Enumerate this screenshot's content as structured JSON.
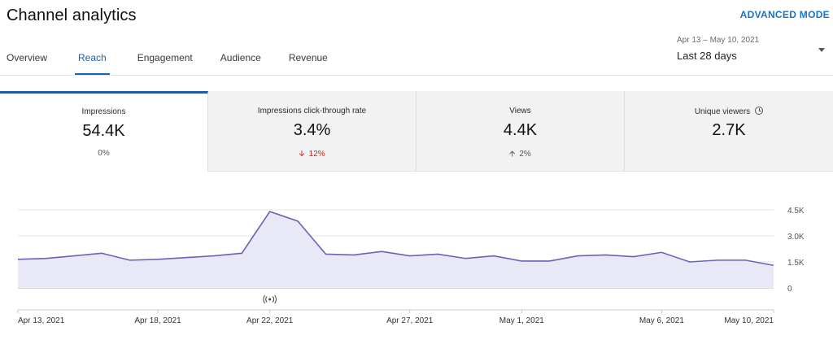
{
  "header": {
    "title": "Channel analytics",
    "advanced_mode_label": "ADVANCED MODE"
  },
  "tabs": [
    {
      "label": "Overview",
      "active": false
    },
    {
      "label": "Reach",
      "active": true
    },
    {
      "label": "Engagement",
      "active": false
    },
    {
      "label": "Audience",
      "active": false
    },
    {
      "label": "Revenue",
      "active": false
    }
  ],
  "date_range": {
    "sub_label": "Apr 13 – May 10, 2021",
    "selected": "Last 28 days"
  },
  "metrics": [
    {
      "label": "Impressions",
      "value": "54.4K",
      "delta": "0%",
      "direction": "none",
      "active": true
    },
    {
      "label": "Impressions click-through rate",
      "value": "3.4%",
      "delta": "12%",
      "direction": "down",
      "active": false
    },
    {
      "label": "Views",
      "value": "4.4K",
      "delta": "2%",
      "direction": "up",
      "active": false
    },
    {
      "label": "Unique viewers",
      "value": "2.7K",
      "delta": "",
      "direction": "none",
      "active": false,
      "icon": "clock-icon"
    }
  ],
  "colors": {
    "accent": "#1764b6",
    "line": "#6b63b5",
    "area": "#e9e8f7",
    "down": "#c5221f"
  },
  "chart_data": {
    "type": "area",
    "x": [
      "Apr 13, 2021",
      "Apr 14, 2021",
      "Apr 15, 2021",
      "Apr 16, 2021",
      "Apr 17, 2021",
      "Apr 18, 2021",
      "Apr 19, 2021",
      "Apr 20, 2021",
      "Apr 21, 2021",
      "Apr 22, 2021",
      "Apr 23, 2021",
      "Apr 24, 2021",
      "Apr 25, 2021",
      "Apr 26, 2021",
      "Apr 27, 2021",
      "Apr 28, 2021",
      "Apr 29, 2021",
      "Apr 30, 2021",
      "May 1, 2021",
      "May 2, 2021",
      "May 3, 2021",
      "May 4, 2021",
      "May 5, 2021",
      "May 6, 2021",
      "May 7, 2021",
      "May 8, 2021",
      "May 9, 2021",
      "May 10, 2021"
    ],
    "tick_labels": [
      "Apr 13, 2021",
      "Apr 18, 2021",
      "Apr 22, 2021",
      "Apr 27, 2021",
      "May 1, 2021",
      "May 6, 2021",
      "May 10, 2021"
    ],
    "tick_index": [
      0,
      5,
      9,
      14,
      18,
      23,
      27
    ],
    "series": [
      {
        "values": [
          1650,
          1700,
          1850,
          2000,
          1600,
          1650,
          1750,
          1850,
          2000,
          4400,
          3850,
          1950,
          1900,
          2100,
          1850,
          1950,
          1700,
          1850,
          1550,
          1550,
          1850,
          1900,
          1800,
          2050,
          1500,
          1600,
          1600,
          1300
        ]
      }
    ],
    "y_ticks": [
      0,
      1500,
      3000,
      4500
    ],
    "y_tick_labels": [
      "0",
      "1.5K",
      "3.0K",
      "4.5K"
    ],
    "ylim": [
      0,
      4500
    ],
    "grid": true,
    "annotation": {
      "index": 9,
      "icon": "live-stream-icon"
    }
  }
}
